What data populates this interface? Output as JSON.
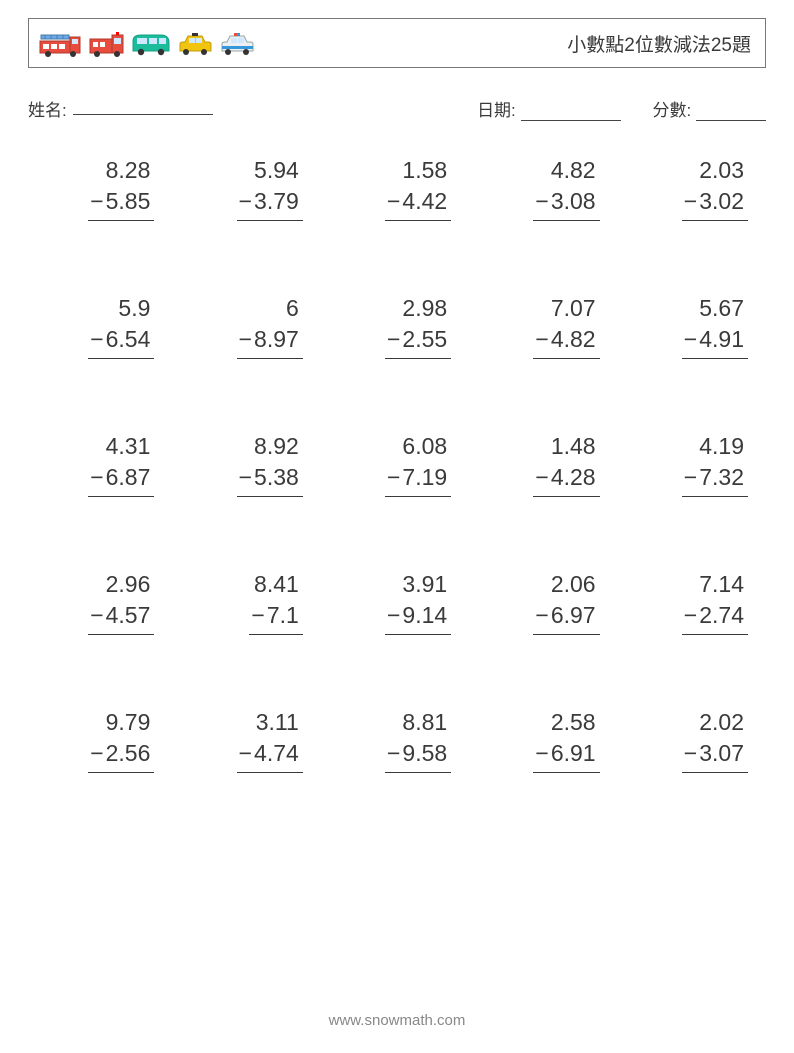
{
  "header": {
    "title": "小數點2位數減法25題"
  },
  "info": {
    "name_label": "姓名:",
    "date_label": "日期:",
    "score_label": "分數:"
  },
  "footer": {
    "text": "www.snowmath.com"
  },
  "worksheet": {
    "type": "subtraction-vertical",
    "columns": 5,
    "rows": 5,
    "font_size_pt": 23,
    "text_color": "#3a3a3a",
    "underline_color": "#3a3a3a",
    "operator": "−",
    "problems": [
      {
        "a": "8.28",
        "b": "5.85"
      },
      {
        "a": "5.94",
        "b": "3.79"
      },
      {
        "a": "1.58",
        "b": "4.42"
      },
      {
        "a": "4.82",
        "b": "3.08"
      },
      {
        "a": "2.03",
        "b": "3.02"
      },
      {
        "a": "5.9",
        "b": "6.54"
      },
      {
        "a": "6",
        "b": "8.97"
      },
      {
        "a": "2.98",
        "b": "2.55"
      },
      {
        "a": "7.07",
        "b": "4.82"
      },
      {
        "a": "5.67",
        "b": "4.91"
      },
      {
        "a": "4.31",
        "b": "6.87"
      },
      {
        "a": "8.92",
        "b": "5.38"
      },
      {
        "a": "6.08",
        "b": "7.19"
      },
      {
        "a": "1.48",
        "b": "4.28"
      },
      {
        "a": "4.19",
        "b": "7.32"
      },
      {
        "a": "2.96",
        "b": "4.57"
      },
      {
        "a": "8.41",
        "b": "7.1"
      },
      {
        "a": "3.91",
        "b": "9.14"
      },
      {
        "a": "2.06",
        "b": "6.97"
      },
      {
        "a": "7.14",
        "b": "2.74"
      },
      {
        "a": "9.79",
        "b": "2.56"
      },
      {
        "a": "3.11",
        "b": "4.74"
      },
      {
        "a": "8.81",
        "b": "9.58"
      },
      {
        "a": "2.58",
        "b": "6.91"
      },
      {
        "a": "2.02",
        "b": "3.07"
      }
    ]
  },
  "vehicles": {
    "fire_truck_ladder": {
      "body": "#e74c3c",
      "accent": "#ffffff",
      "wheel": "#333333",
      "ladder": "#6aa9e9"
    },
    "fire_truck": {
      "body": "#e74c3c",
      "accent": "#ffffff",
      "wheel": "#333333",
      "light": "#ff0000"
    },
    "van": {
      "body": "#1abc9c",
      "window": "#cfe8ff",
      "wheel": "#333333"
    },
    "taxi": {
      "body": "#f1c40f",
      "window": "#cfe8ff",
      "wheel": "#333333",
      "sign": "#333333"
    },
    "police": {
      "body": "#ecf0f1",
      "stripe": "#3498db",
      "window": "#cfe8ff",
      "wheel": "#333333",
      "light": "#e74c3c"
    }
  }
}
